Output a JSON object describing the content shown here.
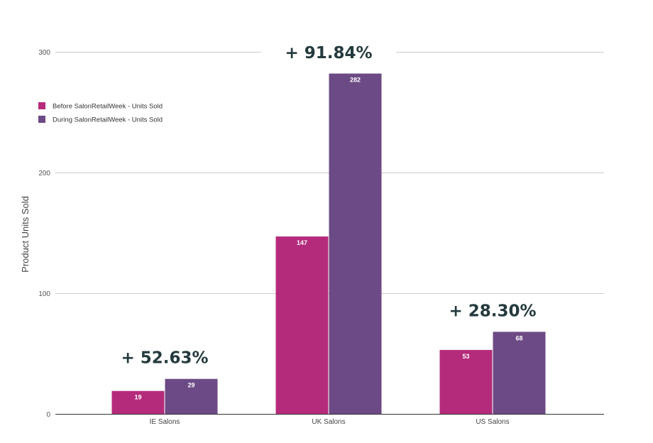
{
  "chart_data": {
    "type": "bar",
    "categories": [
      "IE Salons",
      "UK Salons",
      "US Salons"
    ],
    "series": [
      {
        "name": "Before SalonRetailWeek - Units Sold",
        "color": "#b52b7b",
        "values": [
          19,
          147,
          53
        ]
      },
      {
        "name": "During SalonRetailWeek - Units Sold",
        "color": "#6c4a85",
        "values": [
          29,
          282,
          68
        ]
      }
    ],
    "ylabel": "Product Units Sold",
    "xlabel": "",
    "ylim": [
      0,
      300
    ],
    "yticks": [
      0,
      100,
      200,
      300
    ],
    "grid": true,
    "legend_position": "top-left",
    "annotations": [
      {
        "category": "IE Salons",
        "text": "+ 52.63%"
      },
      {
        "category": "UK Salons",
        "text": "+ 91.84%"
      },
      {
        "category": "US Salons",
        "text": "+ 28.30%"
      }
    ]
  }
}
